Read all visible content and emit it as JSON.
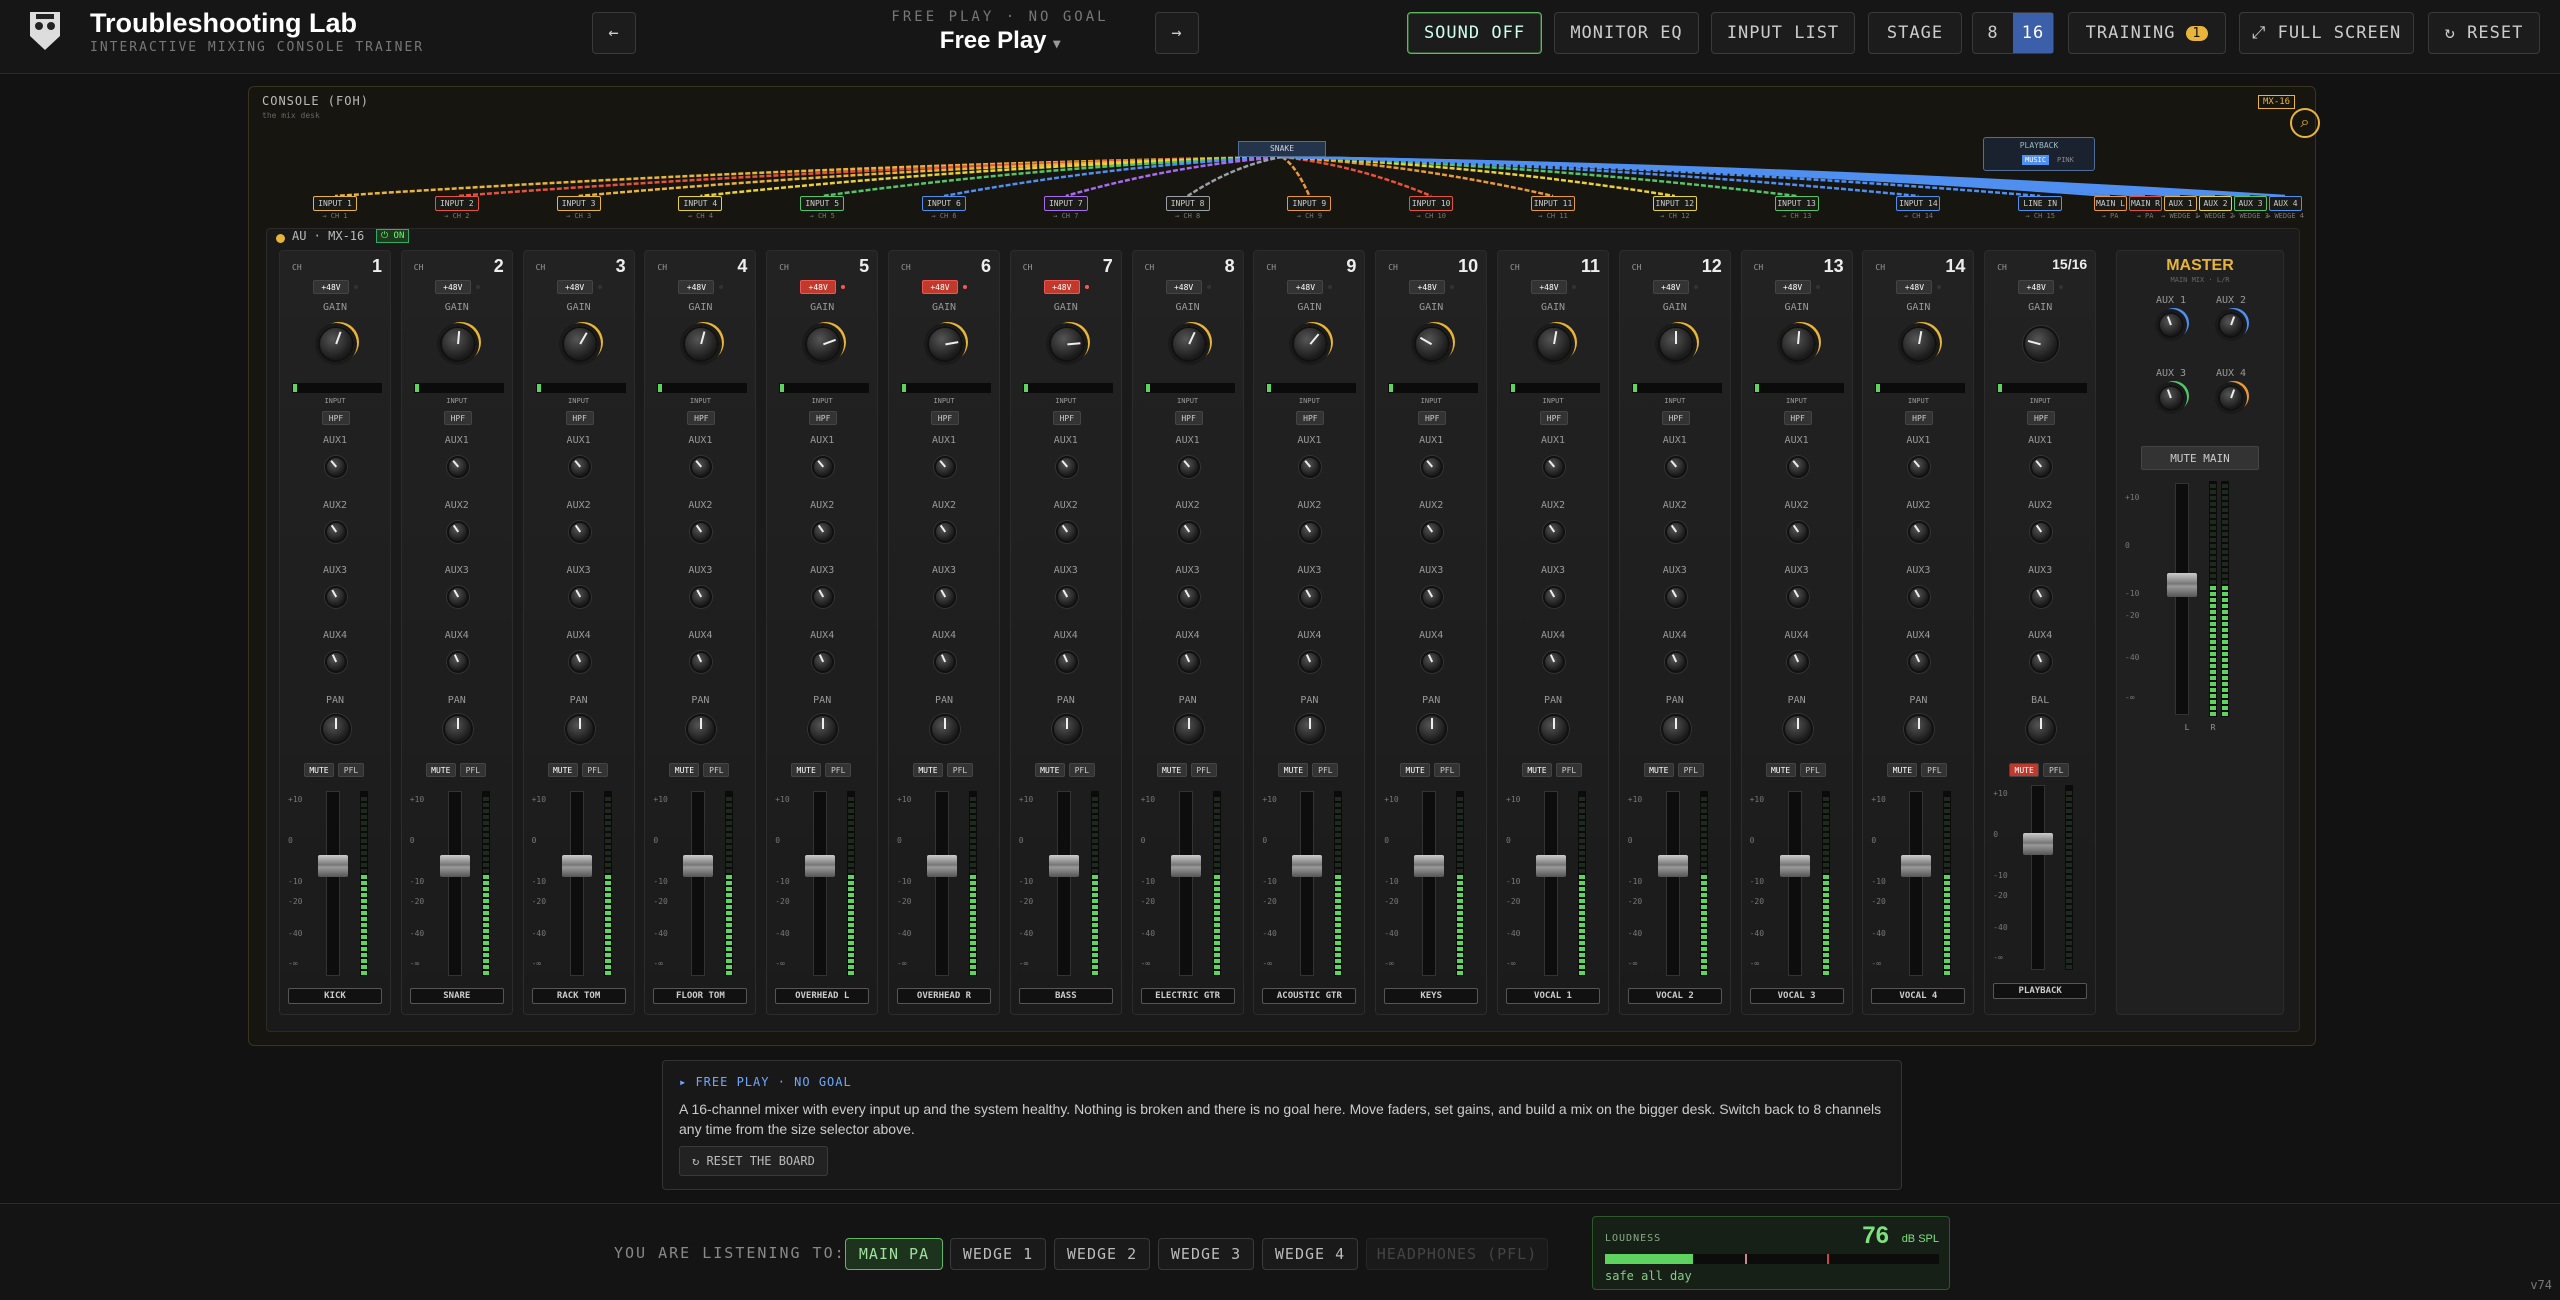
{
  "header": {
    "title": "Troubleshooting Lab",
    "subtitle": "INTERACTIVE MIXING CONSOLE TRAINER",
    "mode_label": "FREE PLAY · NO GOAL",
    "mode": "Free Play",
    "prev": "←",
    "next": "→",
    "buttons": [
      "SOUND OFF",
      "MONITOR EQ",
      "INPUT LIST",
      "STAGE"
    ],
    "sizes": [
      "8",
      "16"
    ],
    "training": "TRAINING",
    "training_count": "1",
    "fullscreen": "⤢ FULL SCREEN",
    "reset": "↻ RESET"
  },
  "console": {
    "title": "CONSOLE (FOH)",
    "subtitle": "the mix desk",
    "badge": "MX-16",
    "snake": "SNAKE",
    "model": "AU · MX-16",
    "power": "⏻ ON",
    "playback": {
      "title": "PLAYBACK",
      "options": [
        "MUSIC",
        "PINK"
      ]
    },
    "inputs": [
      {
        "label": "INPUT 1",
        "route": "→ CH 1",
        "color": "#e8b53a"
      },
      {
        "label": "INPUT 2",
        "route": "→ CH 2",
        "color": "#e5533d"
      },
      {
        "label": "INPUT 3",
        "route": "→ CH 3",
        "color": "#e8b53a"
      },
      {
        "label": "INPUT 4",
        "route": "→ CH 4",
        "color": "#e8d23a"
      },
      {
        "label": "INPUT 5",
        "route": "→ CH 5",
        "color": "#54c46a"
      },
      {
        "label": "INPUT 6",
        "route": "→ CH 6",
        "color": "#4f8ff0"
      },
      {
        "label": "INPUT 7",
        "route": "→ CH 7",
        "color": "#a66bf0"
      },
      {
        "label": "INPUT 8",
        "route": "→ CH 8",
        "color": "#9aa0a8"
      },
      {
        "label": "INPUT 9",
        "route": "→ CH 9",
        "color": "#e89a3a"
      },
      {
        "label": "INPUT 10",
        "route": "→ CH 10",
        "color": "#e5533d"
      },
      {
        "label": "INPUT 11",
        "route": "→ CH 11",
        "color": "#e89a3a"
      },
      {
        "label": "INPUT 12",
        "route": "→ CH 12",
        "color": "#e8d23a"
      },
      {
        "label": "INPUT 13",
        "route": "→ CH 13",
        "color": "#54c46a"
      },
      {
        "label": "INPUT 14",
        "route": "→ CH 14",
        "color": "#4f8ff0"
      },
      {
        "label": "LINE IN",
        "route": "→ CH 15",
        "color": "#4f8ff0"
      }
    ],
    "outputs": [
      {
        "label": "MAIN L",
        "route": "→ PA",
        "color": "#e89a3a"
      },
      {
        "label": "MAIN R",
        "route": "→ PA",
        "color": "#e5533d"
      },
      {
        "label": "AUX 1",
        "route": "→ WEDGE 1",
        "color": "#e8b53a"
      },
      {
        "label": "AUX 2",
        "route": "→ WEDGE 2",
        "color": "#e8d23a"
      },
      {
        "label": "AUX 3",
        "route": "→ WEDGE 3",
        "color": "#54c46a"
      },
      {
        "label": "AUX 4",
        "route": "→ WEDGE 4",
        "color": "#4f8ff0"
      }
    ],
    "labels": {
      "ch": "CH",
      "phantom": "+48V",
      "gain": "GAIN",
      "input": "INPUT",
      "hpf": "HPF",
      "aux": [
        "AUX1",
        "AUX2",
        "AUX3",
        "AUX4"
      ],
      "pan": "PAN",
      "bal": "BAL",
      "mute": "MUTE",
      "pfl": "PFL"
    },
    "fader_scale": [
      "+10",
      "0",
      "-10",
      "-20",
      "-40",
      "-∞"
    ],
    "channels": [
      {
        "number": "1",
        "name": "KICK",
        "phantom": false
      },
      {
        "number": "2",
        "name": "SNARE",
        "phantom": false
      },
      {
        "number": "3",
        "name": "RACK TOM",
        "phantom": false
      },
      {
        "number": "4",
        "name": "FLOOR TOM",
        "phantom": false
      },
      {
        "number": "5",
        "name": "OVERHEAD L",
        "phantom": true
      },
      {
        "number": "6",
        "name": "OVERHEAD R",
        "phantom": true
      },
      {
        "number": "7",
        "name": "BASS",
        "phantom": true
      },
      {
        "number": "8",
        "name": "ELECTRIC GTR",
        "phantom": false
      },
      {
        "number": "9",
        "name": "ACOUSTIC GTR",
        "phantom": false
      },
      {
        "number": "10",
        "name": "KEYS",
        "phantom": false
      },
      {
        "number": "11",
        "name": "VOCAL 1",
        "phantom": false
      },
      {
        "number": "12",
        "name": "VOCAL 2",
        "phantom": false
      },
      {
        "number": "13",
        "name": "VOCAL 3",
        "phantom": false
      },
      {
        "number": "14",
        "name": "VOCAL 4",
        "phantom": false
      },
      {
        "number": "15/16",
        "name": "PLAYBACK",
        "phantom": false,
        "stereo": true,
        "muted": true
      }
    ],
    "master": {
      "title": "MASTER",
      "subtitle": "MAIN MIX · L/R",
      "aux": [
        "AUX 1",
        "AUX 2",
        "AUX 3",
        "AUX 4"
      ],
      "mute": "MUTE MAIN",
      "left": "L",
      "right": "R"
    }
  },
  "info": {
    "tag": "▸ FREE PLAY · NO GOAL",
    "text": "A 16-channel mixer with every input up and the system healthy. Nothing is broken and there is no goal here. Move faders, set gains, and build a mix on the bigger desk. Switch back to 8 channels any time from the size selector above.",
    "button": "↻ RESET THE BOARD"
  },
  "footer": {
    "listening": "YOU ARE LISTENING TO:",
    "outputs": [
      "MAIN PA",
      "WEDGE 1",
      "WEDGE 2",
      "WEDGE 3",
      "WEDGE 4",
      "HEADPHONES (PFL)"
    ],
    "loudness_label": "LOUDNESS",
    "loudness": 76,
    "unit": "dB SPL",
    "status": "safe all day",
    "version": "v74"
  }
}
